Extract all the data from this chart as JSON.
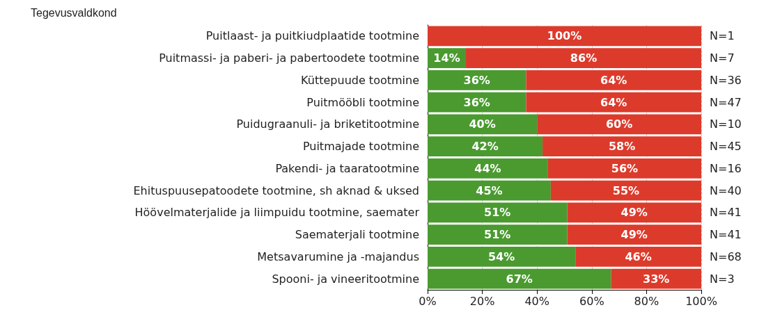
{
  "chart_data": {
    "type": "bar",
    "orientation": "horizontal",
    "stacked": true,
    "ylabel": "Tegevusvaldkond",
    "categories": [
      "Puitlaast- ja puitkiudplaatide tootmine",
      "Puitmassi- ja paberi- ja pabertoodete tootmine",
      "Küttepuude tootmine",
      "Puitmööbli tootmine",
      "Puidugraanuli- ja briketitootmine",
      "Puitmajade tootmine",
      "Pakendi- ja taaratootmine",
      "Ehituspuusepatoodete tootmine, sh aknad & uksed",
      "Höövelmaterjalide ja liimpuidu tootmine, saemater",
      "Saematerjali tootmine",
      "Metsavarumine ja -majandus",
      "Spooni- ja vineeritootmine"
    ],
    "series": [
      {
        "color": "#4a9a30",
        "values": [
          0,
          14,
          36,
          36,
          40,
          42,
          44,
          45,
          51,
          51,
          54,
          67
        ],
        "value_labels": [
          null,
          "14%",
          "36%",
          "36%",
          "40%",
          "42%",
          "44%",
          "45%",
          "51%",
          "51%",
          "54%",
          "67%"
        ]
      },
      {
        "color": "#dc3b2c",
        "values": [
          100,
          86,
          64,
          64,
          60,
          58,
          56,
          55,
          49,
          49,
          46,
          33
        ],
        "value_labels": [
          "100%",
          "86%",
          "64%",
          "64%",
          "60%",
          "58%",
          "56%",
          "55%",
          "49%",
          "49%",
          "46%",
          "33%"
        ]
      }
    ],
    "xlim": [
      0,
      100
    ],
    "xticks": [
      {
        "value": 0,
        "label": "0%"
      },
      {
        "value": 20,
        "label": "20%"
      },
      {
        "value": 40,
        "label": "40%"
      },
      {
        "value": 60,
        "label": "60%"
      },
      {
        "value": 80,
        "label": "80%"
      },
      {
        "value": 100,
        "label": "100%"
      }
    ],
    "grid": "x",
    "annotations": [
      "N=1",
      "N=7",
      "N=36",
      "N=47",
      "N=10",
      "N=45",
      "N=16",
      "N=40",
      "N=41",
      "N=41",
      "N=68",
      "N=3"
    ]
  }
}
